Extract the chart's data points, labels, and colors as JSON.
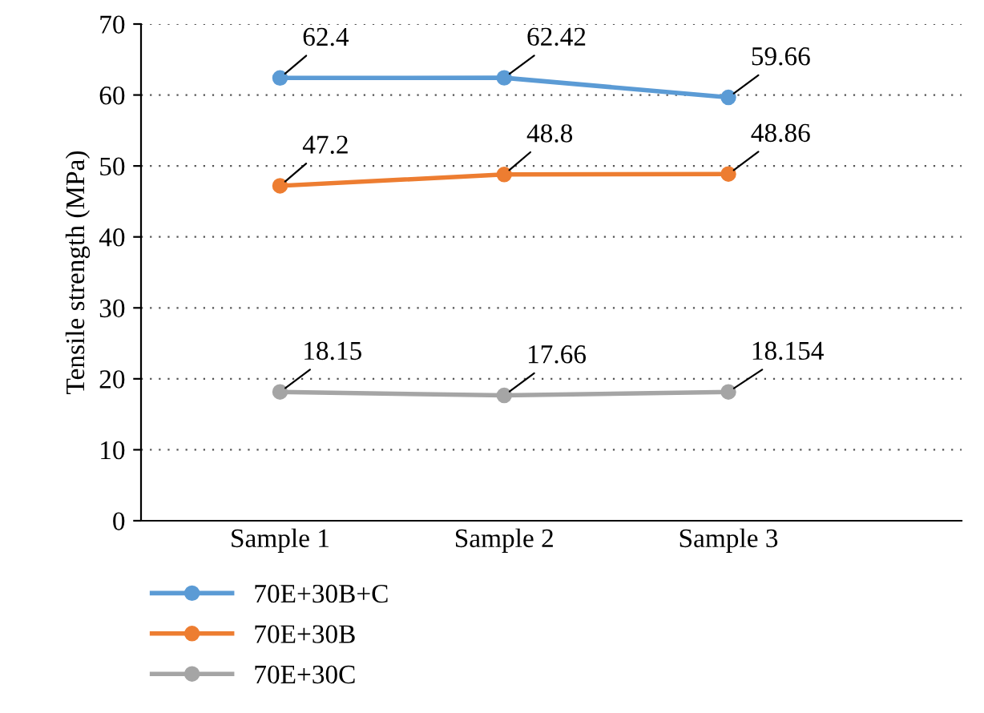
{
  "chart_data": {
    "type": "line",
    "ylabel": "Tensile strength (MPa)",
    "categories": [
      "Sample 1",
      "Sample 2",
      "Sample 3"
    ],
    "series": [
      {
        "name": "70E+30B+C",
        "color": "#5b9bd5",
        "values": [
          62.4,
          62.42,
          59.66
        ]
      },
      {
        "name": "70E+30B",
        "color": "#ed7d31",
        "values": [
          47.2,
          48.8,
          48.86
        ]
      },
      {
        "name": "70E+30C",
        "color": "#a5a5a5",
        "values": [
          18.15,
          17.66,
          18.154
        ]
      }
    ],
    "ylim": [
      0,
      70
    ],
    "yticks": [
      0,
      10,
      20,
      30,
      40,
      50,
      60,
      70
    ],
    "grid": "y",
    "legend": "bottom",
    "marker": "circle",
    "line_style": "solid",
    "data_labels": true
  }
}
